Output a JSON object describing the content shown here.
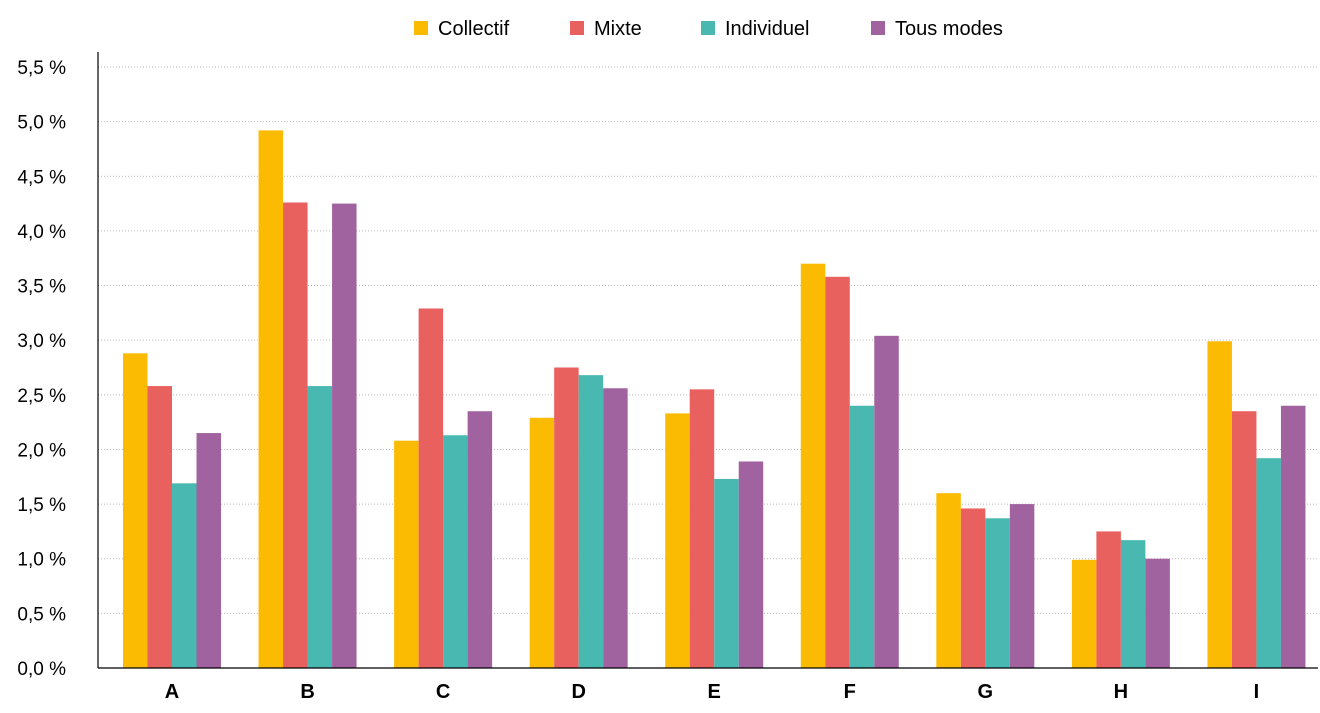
{
  "chart_data": {
    "type": "bar",
    "categories": [
      "A",
      "B",
      "C",
      "D",
      "E",
      "F",
      "G",
      "H",
      "I"
    ],
    "series": [
      {
        "name": "Collectif",
        "color": "#fbbb03",
        "values": [
          2.88,
          4.92,
          2.08,
          2.29,
          2.33,
          3.7,
          1.6,
          0.99,
          2.99
        ]
      },
      {
        "name": "Mixte",
        "color": "#e9615f",
        "values": [
          2.58,
          4.26,
          3.29,
          2.75,
          2.55,
          3.58,
          1.46,
          1.25,
          2.35
        ]
      },
      {
        "name": "Individuel",
        "color": "#49b8b0",
        "values": [
          1.69,
          2.58,
          2.13,
          2.68,
          1.73,
          2.4,
          1.37,
          1.17,
          1.92
        ]
      },
      {
        "name": "Tous modes",
        "color": "#a0639f",
        "values": [
          2.15,
          4.25,
          2.35,
          2.56,
          1.89,
          3.04,
          1.5,
          1.0,
          2.4
        ]
      }
    ],
    "ylim": [
      0,
      5.5
    ],
    "yticks": [
      "0,0 %",
      "0,5 %",
      "1,0 %",
      "1,5 %",
      "2,0 %",
      "2,5 %",
      "3,0 %",
      "3,5 %",
      "4,0 %",
      "4,5 %",
      "5,0 %",
      "5,5 %"
    ],
    "grid": true,
    "legend_position": "top-center"
  }
}
